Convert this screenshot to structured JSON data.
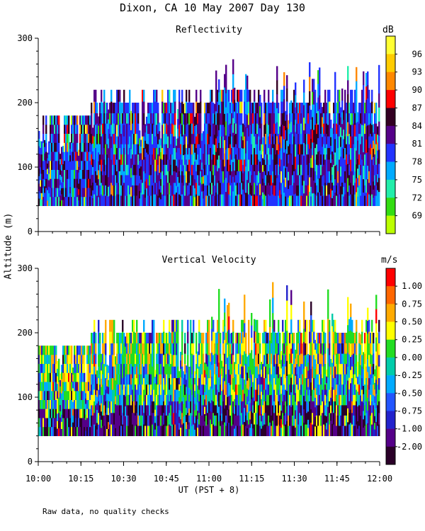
{
  "page": {
    "title": "Dixon, CA 10 May 2007  Day 130",
    "y_axis_label": "Altitude (m)",
    "x_axis_label": "UT  (PST + 8)",
    "footnote": "Raw data, no quality checks"
  },
  "chart_data": [
    {
      "type": "heatmap",
      "title": "Reflectivity",
      "colorbar_unit": "dB",
      "colorbar_ticks": [
        "96",
        "93",
        "90",
        "87",
        "84",
        "81",
        "78",
        "75",
        "72",
        "69"
      ],
      "colorbar_colors": [
        "#ffff33",
        "#ffcc00",
        "#ff8800",
        "#ff0000",
        "#330022",
        "#550088",
        "#2233ff",
        "#00aaff",
        "#22eeaa",
        "#33dd11",
        "#bbff00"
      ],
      "ylim": [
        0,
        300
      ],
      "yticks": [
        "0",
        "100",
        "200",
        "300"
      ],
      "xticks": [
        "10:00",
        "10:15",
        "10:30",
        "10:45",
        "11:00",
        "11:15",
        "11:30",
        "11:45",
        "12:00"
      ],
      "x_range": [
        "10:00",
        "12:00"
      ],
      "echo_base_altitude_m": 40,
      "typical_echo_top_altitude_m": 180,
      "max_echo_top_altitude_m": 280
    },
    {
      "type": "heatmap",
      "title": "Vertical Velocity",
      "colorbar_unit": "m/s",
      "colorbar_ticks": [
        "1.00",
        "0.75",
        "0.50",
        "0.25",
        "0.00",
        "-0.25",
        "-0.50",
        "-0.75",
        "-1.00",
        "-2.00"
      ],
      "colorbar_colors": [
        "#ff0000",
        "#ff6600",
        "#ffaa00",
        "#ffff00",
        "#22dd22",
        "#00ccaa",
        "#00aaff",
        "#2255ff",
        "#2222cc",
        "#550088",
        "#2a0028"
      ],
      "ylim": [
        0,
        300
      ],
      "yticks": [
        "0",
        "100",
        "200",
        "300"
      ],
      "xticks": [
        "10:00",
        "10:15",
        "10:30",
        "10:45",
        "11:00",
        "11:15",
        "11:30",
        "11:45",
        "12:00"
      ],
      "x_range": [
        "10:00",
        "12:00"
      ],
      "echo_base_altitude_m": 40,
      "typical_echo_top_altitude_m": 180,
      "max_echo_top_altitude_m": 280
    }
  ]
}
